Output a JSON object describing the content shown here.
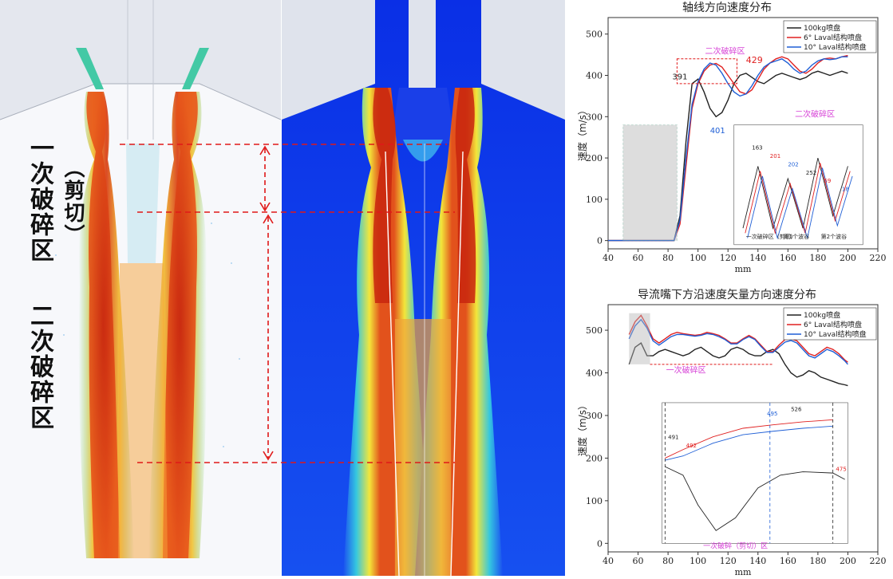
{
  "zones": {
    "primary": {
      "line1": "一次",
      "line2": "（剪切）",
      "line3": "破碎区"
    },
    "secondary": "二次破碎区"
  },
  "colors": {
    "black": "#222222",
    "red": "#e02020",
    "blue": "#1f5fd6",
    "dash": "#e01818",
    "pink": "#d63fd6"
  },
  "chart_data": [
    {
      "type": "line",
      "title": "轴线方向速度分布",
      "xlabel": "mm",
      "ylabel": "速度（m/s）",
      "xlim": [
        40,
        220
      ],
      "ylim": [
        -20,
        540
      ],
      "xticks": [
        40,
        60,
        80,
        100,
        120,
        140,
        160,
        180,
        200,
        220
      ],
      "yticks": [
        0,
        100,
        200,
        300,
        400,
        500
      ],
      "legend": [
        "100kg喷盘",
        "6° Laval结构喷盘",
        "10° Laval结构喷盘"
      ],
      "annotations": {
        "peak_black": "391",
        "peak_red": "429",
        "valley_blue": "401",
        "region_secondary": "二次破碎区"
      },
      "series": [
        {
          "name": "100kg喷盘",
          "x": [
            40,
            84,
            88,
            92,
            96,
            100,
            104,
            108,
            112,
            116,
            120,
            124,
            128,
            132,
            136,
            140,
            144,
            148,
            152,
            156,
            160,
            164,
            168,
            172,
            176,
            180,
            184,
            188,
            192,
            196,
            200
          ],
          "values": [
            0,
            0,
            60,
            240,
            380,
            391,
            360,
            320,
            300,
            310,
            340,
            380,
            400,
            405,
            395,
            385,
            380,
            390,
            400,
            405,
            400,
            395,
            390,
            395,
            405,
            410,
            405,
            400,
            405,
            410,
            405
          ]
        },
        {
          "name": "6° Laval结构喷盘",
          "x": [
            40,
            84,
            88,
            92,
            96,
            100,
            104,
            108,
            112,
            116,
            120,
            124,
            128,
            132,
            136,
            140,
            144,
            148,
            152,
            156,
            160,
            164,
            168,
            172,
            176,
            180,
            184,
            188,
            192,
            196,
            200
          ],
          "values": [
            0,
            0,
            40,
            180,
            320,
            380,
            410,
            425,
            429,
            420,
            400,
            380,
            360,
            355,
            365,
            390,
            415,
            430,
            440,
            445,
            440,
            425,
            410,
            405,
            415,
            430,
            440,
            442,
            440,
            445,
            448
          ]
        },
        {
          "name": "10° Laval结构喷盘",
          "x": [
            40,
            84,
            88,
            92,
            96,
            100,
            104,
            108,
            112,
            116,
            120,
            124,
            128,
            132,
            136,
            140,
            144,
            148,
            152,
            156,
            160,
            164,
            168,
            172,
            176,
            180,
            184,
            188,
            192,
            196,
            200
          ],
          "values": [
            0,
            0,
            50,
            200,
            330,
            385,
            415,
            430,
            425,
            405,
            380,
            360,
            350,
            355,
            375,
            400,
            420,
            430,
            435,
            440,
            430,
            415,
            405,
            410,
            425,
            435,
            440,
            438,
            440,
            445,
            445
          ]
        }
      ],
      "inset": {
        "title": "二次破碎区",
        "labels": [
          "一次破碎区（剪切）",
          "第1个波谷",
          "第2个波谷"
        ],
        "values_shown": [
          "163",
          "201",
          "202",
          "252",
          "59",
          "18"
        ]
      }
    },
    {
      "type": "line",
      "title": "导流嘴下方沿速度矢量方向速度分布",
      "xlabel": "mm",
      "ylabel": "速度（m/s）",
      "xlim": [
        40,
        220
      ],
      "ylim": [
        -20,
        560
      ],
      "xticks": [
        40,
        60,
        80,
        100,
        120,
        140,
        160,
        180,
        200,
        220
      ],
      "yticks": [
        0,
        100,
        200,
        300,
        400,
        500
      ],
      "legend": [
        "100kg喷盘",
        "6° Laval结构喷盘",
        "10° Laval结构喷盘"
      ],
      "annotations": {
        "region_primary": "一次破碎区"
      },
      "series": [
        {
          "name": "100kg喷盘",
          "x": [
            54,
            58,
            62,
            66,
            70,
            74,
            78,
            82,
            86,
            90,
            94,
            98,
            102,
            106,
            110,
            114,
            118,
            122,
            126,
            130,
            134,
            138,
            142,
            146,
            150,
            154,
            158,
            162,
            166,
            170,
            174,
            178,
            182,
            186,
            190,
            194,
            198,
            200
          ],
          "values": [
            420,
            460,
            470,
            440,
            440,
            450,
            455,
            450,
            445,
            440,
            445,
            455,
            460,
            450,
            440,
            435,
            440,
            455,
            460,
            455,
            445,
            440,
            440,
            450,
            455,
            445,
            420,
            400,
            390,
            395,
            405,
            400,
            390,
            385,
            380,
            375,
            372,
            370
          ]
        },
        {
          "name": "6° Laval结构喷盘",
          "x": [
            54,
            58,
            62,
            66,
            70,
            74,
            78,
            82,
            86,
            90,
            94,
            98,
            102,
            106,
            110,
            114,
            118,
            122,
            126,
            130,
            134,
            138,
            142,
            146,
            150,
            154,
            158,
            162,
            166,
            170,
            174,
            178,
            182,
            186,
            190,
            194,
            198,
            200
          ],
          "values": [
            490,
            520,
            535,
            510,
            480,
            470,
            480,
            490,
            495,
            492,
            490,
            488,
            490,
            495,
            492,
            488,
            480,
            470,
            470,
            480,
            488,
            480,
            465,
            450,
            450,
            465,
            478,
            480,
            475,
            460,
            445,
            440,
            450,
            460,
            455,
            445,
            430,
            425
          ]
        },
        {
          "name": "10° Laval结构喷盘",
          "x": [
            54,
            58,
            62,
            66,
            70,
            74,
            78,
            82,
            86,
            90,
            94,
            98,
            102,
            106,
            110,
            114,
            118,
            122,
            126,
            130,
            134,
            138,
            142,
            146,
            150,
            154,
            158,
            162,
            166,
            170,
            174,
            178,
            182,
            186,
            190,
            194,
            198,
            200
          ],
          "values": [
            480,
            510,
            525,
            505,
            475,
            465,
            475,
            485,
            490,
            490,
            488,
            486,
            488,
            492,
            490,
            485,
            478,
            468,
            468,
            478,
            485,
            478,
            462,
            448,
            448,
            460,
            472,
            476,
            470,
            455,
            440,
            435,
            445,
            455,
            450,
            440,
            428,
            420
          ]
        }
      ],
      "inset": {
        "title": "一次破碎（剪切）区",
        "values_shown": [
          "491",
          "492",
          "495",
          "526",
          "475"
        ]
      }
    }
  ]
}
